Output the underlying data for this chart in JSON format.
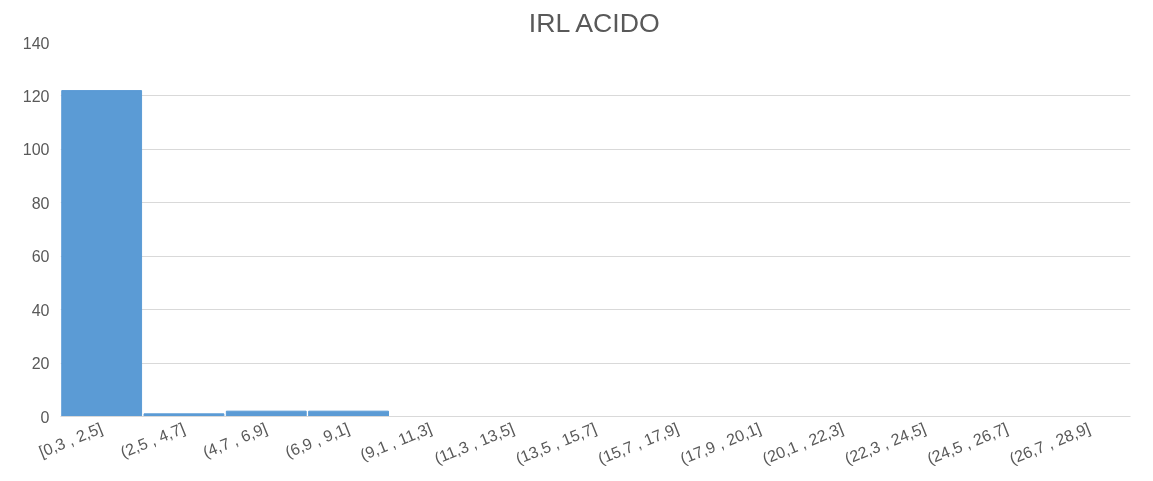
{
  "chart_data": {
    "type": "bar",
    "title": "IRL ACIDO",
    "categories": [
      "[0,3 , 2,5]",
      "(2,5 , 4,7]",
      "(4,7 , 6,9]",
      "(6,9 , 9,1]",
      "(9,1 , 11,3]",
      "(11,3 , 13,5]",
      "(13,5 , 15,7]",
      "(15,7 , 17,9]",
      "(17,9 , 20,1]",
      "(20,1 , 22,3]",
      "(22,3 , 24,5]",
      "(24,5 , 26,7]",
      "(26,7 , 28,9]"
    ],
    "values": [
      122,
      1,
      2,
      2,
      0,
      0,
      0,
      0,
      0,
      0,
      0,
      0,
      0
    ],
    "color": "#5b9bd5",
    "ylim": [
      0,
      140
    ],
    "yticks": [
      0,
      20,
      40,
      60,
      80,
      100,
      120,
      140
    ],
    "grid": "y"
  }
}
